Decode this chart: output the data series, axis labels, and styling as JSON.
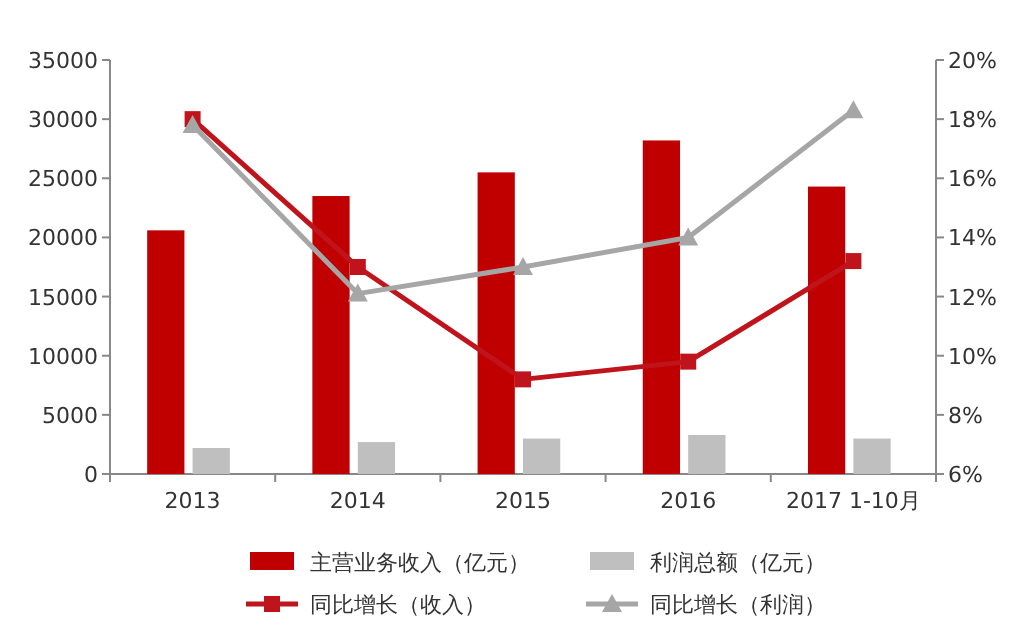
{
  "chart_data": {
    "type": "bar",
    "categories": [
      "2013",
      "2014",
      "2015",
      "2016",
      "2017 1-10月"
    ],
    "series": [
      {
        "name": "主营业务收入（亿元）",
        "color": "#c00000",
        "values": [
          20600,
          23500,
          25500,
          28200,
          24300
        ]
      },
      {
        "name": "利润总额（亿元）",
        "color": "#bfbfbf",
        "values": [
          2200,
          2700,
          3000,
          3300,
          3000
        ]
      },
      {
        "name": "同比增长（收入）",
        "type": "line",
        "axis": "y2",
        "marker": "square",
        "color": "#c0141c",
        "values": [
          18.0,
          13.0,
          9.2,
          9.8,
          13.2
        ]
      },
      {
        "name": "同比增长（利润）",
        "type": "line",
        "axis": "y2",
        "marker": "triangle",
        "color": "#a6a6a6",
        "values": [
          17.8,
          12.1,
          13.0,
          14.0,
          18.3
        ]
      }
    ],
    "ylim": [
      0,
      35000
    ],
    "yticks": [
      0,
      5000,
      10000,
      15000,
      20000,
      25000,
      30000,
      35000
    ],
    "y2lim": [
      6,
      20
    ],
    "y2ticks": [
      {
        "value": 6,
        "label": "6%"
      },
      {
        "value": 8,
        "label": "8%"
      },
      {
        "value": 10,
        "label": "10%"
      },
      {
        "value": 12,
        "label": "12%"
      },
      {
        "value": 14,
        "label": "14%"
      },
      {
        "value": 16,
        "label": "16%"
      },
      {
        "value": 18,
        "label": "18%"
      },
      {
        "value": 20,
        "label": "20%"
      }
    ],
    "grid": false,
    "legend": "bottom"
  }
}
